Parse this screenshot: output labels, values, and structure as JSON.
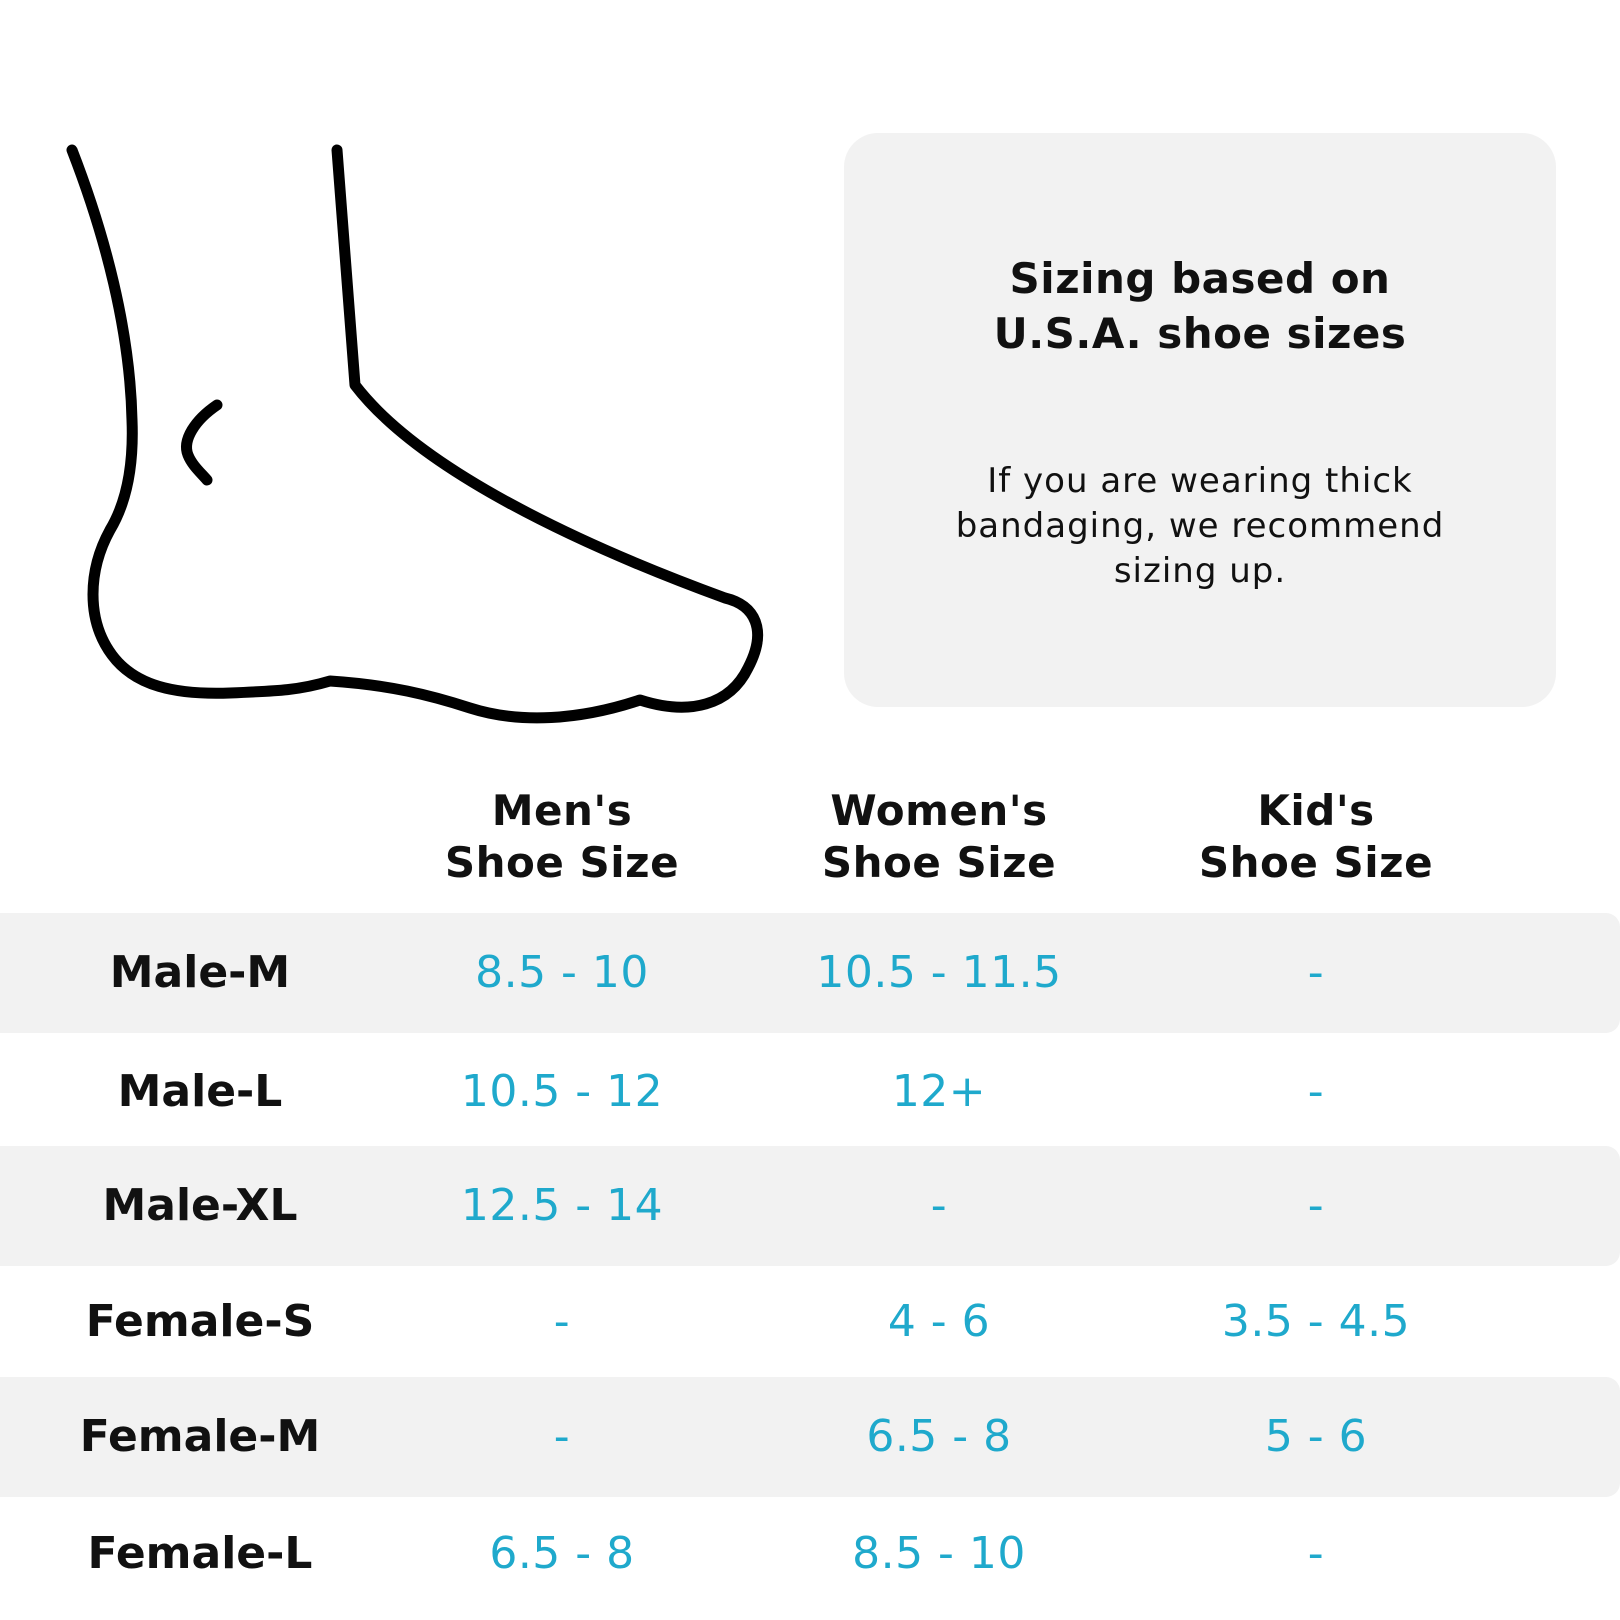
{
  "info": {
    "title_line1": "Sizing based on",
    "title_line2": "U.S.A. shoe sizes",
    "note": "If you are wearing thick bandaging, we recommend sizing up."
  },
  "columns": [
    {
      "line1": "Men's",
      "line2": "Shoe Size"
    },
    {
      "line1": "Women's",
      "line2": "Shoe Size"
    },
    {
      "line1": "Kid's",
      "line2": "Shoe Size"
    }
  ],
  "rows": [
    {
      "label": "Male-M",
      "mens": "8.5 - 10",
      "womens": "10.5 - 11.5",
      "kids": "-"
    },
    {
      "label": "Male-L",
      "mens": "10.5 - 12",
      "womens": "12+",
      "kids": "-"
    },
    {
      "label": "Male-XL",
      "mens": "12.5 - 14",
      "womens": "-",
      "kids": "-"
    },
    {
      "label": "Female-S",
      "mens": "-",
      "womens": "4 - 6",
      "kids": "3.5 - 4.5"
    },
    {
      "label": "Female-M",
      "mens": "-",
      "womens": "6.5 - 8",
      "kids": "5 - 6"
    },
    {
      "label": "Female-L",
      "mens": "6.5 - 8",
      "womens": "8.5 - 10",
      "kids": "-"
    }
  ],
  "colors": {
    "value_text": "#1fa9cc",
    "row_shade": "#f2f2f2",
    "panel_bg": "#f2f2f2"
  },
  "icon": "foot-outline-icon"
}
